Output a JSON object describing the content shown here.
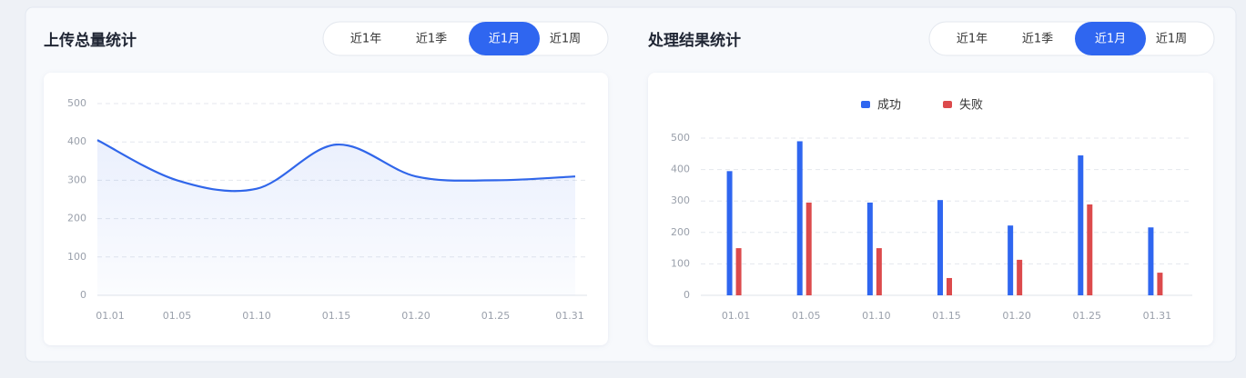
{
  "chart_data": [
    {
      "type": "line",
      "title": "上传总量统计",
      "tabs": [
        "近1年",
        "近1季",
        "近1月",
        "近1周"
      ],
      "categories": [
        "01.01",
        "01.05",
        "01.10",
        "01.15",
        "01.20",
        "01.25",
        "01.31"
      ],
      "values": [
        405,
        300,
        278,
        393,
        310,
        300,
        310
      ],
      "color": "#3066ea",
      "ylim": [
        0,
        500
      ],
      "yticks": [
        0,
        100,
        200,
        300,
        400,
        500
      ],
      "grid": true
    },
    {
      "type": "bar",
      "title": "处理结果统计",
      "tabs": [
        "近1年",
        "近1季",
        "近1月",
        "近1周"
      ],
      "categories": [
        "01.01",
        "01.05",
        "01.10",
        "01.15",
        "01.20",
        "01.25",
        "01.31"
      ],
      "series": [
        {
          "name": "成功",
          "color": "#2f66f0",
          "values": [
            395,
            490,
            295,
            303,
            222,
            445,
            216
          ]
        },
        {
          "name": "失败",
          "color": "#dc4a4c",
          "values": [
            150,
            295,
            150,
            55,
            113,
            289,
            72
          ]
        }
      ],
      "ylim": [
        0,
        500
      ],
      "yticks": [
        0,
        100,
        200,
        300,
        400,
        500
      ],
      "grid": true,
      "legend": "top"
    }
  ]
}
